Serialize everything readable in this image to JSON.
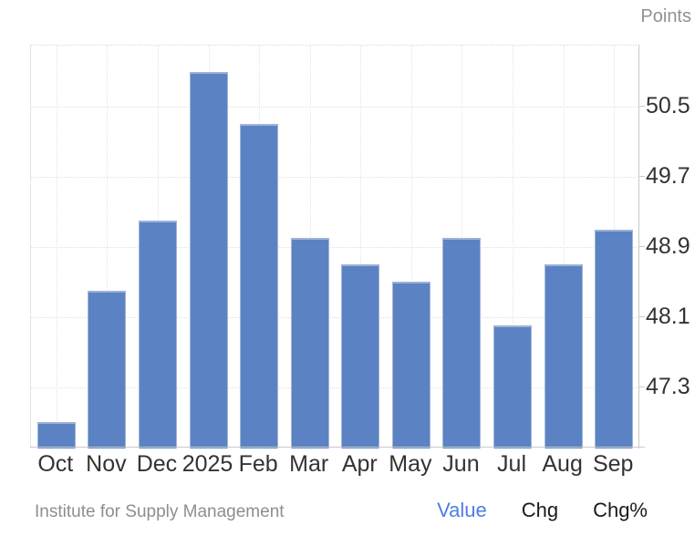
{
  "chart_data": {
    "type": "bar",
    "unit": "Points",
    "title": "",
    "xlabel": "",
    "ylabel": "Points",
    "categories": [
      "Oct",
      "Nov",
      "Dec",
      "2025",
      "Feb",
      "Mar",
      "Apr",
      "May",
      "Jun",
      "Jul",
      "Aug",
      "Sep"
    ],
    "values": [
      46.9,
      48.4,
      49.2,
      50.9,
      50.3,
      49.0,
      48.7,
      48.5,
      49.0,
      48.0,
      48.7,
      49.1
    ],
    "yticks": [
      47.3,
      48.1,
      48.9,
      49.7,
      50.5
    ],
    "ylim": [
      46.6,
      51.2
    ],
    "grid": true,
    "legend": "none",
    "bar_color": "#5b83c3"
  },
  "footer": {
    "source": "Institute for Supply Management",
    "links": [
      {
        "label": "Value",
        "active": true
      },
      {
        "label": "Chg",
        "active": false
      },
      {
        "label": "Chg%",
        "active": false
      }
    ]
  },
  "colors": {
    "bar": "#5b83c3",
    "bar_edge": "#9fb2d6",
    "axis_text": "#333333",
    "muted_text": "#8e8e8e",
    "unit_text": "#919191",
    "active_link": "#4d7de8",
    "gridline": "#e0e0e0",
    "axis_line": "#c9c9c9"
  }
}
